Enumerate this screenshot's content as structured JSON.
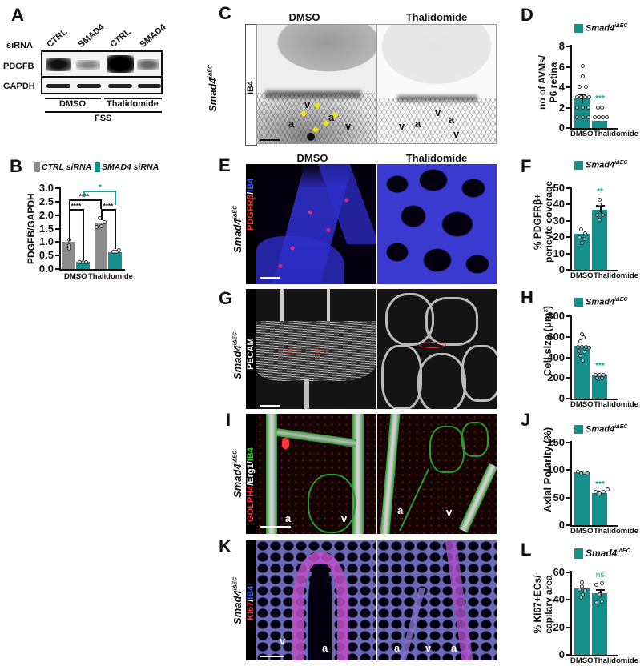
{
  "panels": {
    "A": {
      "label": "A",
      "row_header": "siRNA",
      "lanes": [
        "CTRL",
        "SMAD4",
        "CTRL",
        "SMAD4"
      ],
      "blots": [
        "PDGFB",
        "GAPDH"
      ],
      "treatments": [
        "DMSO",
        "Thalidomide"
      ],
      "condition": "FSS"
    },
    "B": {
      "label": "B",
      "legend": [
        {
          "name": "CTRL siRNA",
          "color": "#8c8c8c"
        },
        {
          "name": "SMAD4 siRNA",
          "color": "#138f8c"
        }
      ],
      "significance": [
        "****",
        "****",
        "****",
        "*"
      ]
    },
    "C": {
      "label": "C",
      "genotype": "Smad4",
      "genotype_sup": "iΔEC",
      "stain": "IB4",
      "columns": [
        "DMSO",
        "Thalidomide"
      ],
      "markers_left": [
        "v",
        "a",
        "a",
        "v"
      ],
      "markers_right": [
        "v",
        "a",
        "v",
        "a",
        "v"
      ]
    },
    "D": {
      "label": "D"
    },
    "E": {
      "label": "E",
      "genotype": "Smad4",
      "genotype_sup": "iΔEC",
      "stain_red": "PDGFRβ",
      "stain_sep": "/",
      "stain_blue": "IB4",
      "columns": [
        "DMSO",
        "Thalidomide"
      ]
    },
    "F": {
      "label": "F"
    },
    "G": {
      "label": "G",
      "genotype": "Smad4",
      "genotype_sup": "iΔEC",
      "stain": "PECAM"
    },
    "H": {
      "label": "H"
    },
    "I": {
      "label": "I",
      "genotype": "Smad4",
      "genotype_sup": "iΔEC",
      "stain_red": "GOLPH4",
      "stain_white": "/Erg1/",
      "stain_green": "IB4",
      "markers_left": [
        "a",
        "v"
      ],
      "markers_right": [
        "a",
        "v"
      ]
    },
    "J": {
      "label": "J"
    },
    "K": {
      "label": "K",
      "genotype": "Smad4",
      "genotype_sup": "iΔEC",
      "stain_red": "KI67",
      "stain_sep": "/",
      "stain_blue": "IB4",
      "markers_left": [
        "v",
        "a"
      ],
      "markers_right": [
        "a",
        "v",
        "a"
      ]
    },
    "L": {
      "label": "L"
    }
  },
  "legend_common": {
    "name": "Smad4",
    "sup": "iΔEC",
    "color": "#138f8c"
  },
  "chart_data": [
    {
      "panel": "B",
      "type": "bar",
      "categories": [
        "DMSO",
        "Thalidomide"
      ],
      "series": [
        {
          "name": "CTRL siRNA",
          "values": [
            1.0,
            1.7
          ],
          "color": "#8c8c8c"
        },
        {
          "name": "SMAD4 siRNA",
          "values": [
            0.28,
            0.6
          ],
          "color": "#138f8c"
        }
      ],
      "ylabel": "PDGFB/GAPDH",
      "ylim": [
        0,
        3.0
      ],
      "yticks": [
        "0.0",
        "0.5",
        "1.0",
        "1.5",
        "2.0",
        "2.5",
        "3.0"
      ],
      "annotations": [
        "**** CTRL vs SMAD4 (DMSO)",
        "**** CTRL vs SMAD4 (Thalidomide)",
        "**** CTRL DMSO vs CTRL Thalidomide",
        "* SMAD4 DMSO vs SMAD4 Thalidomide"
      ]
    },
    {
      "panel": "D",
      "type": "bar",
      "categories": [
        "DMSO",
        "Thalidomide"
      ],
      "values": [
        2.85,
        0.7
      ],
      "legend": "Smad4 iΔEC",
      "ylabel": "no of AVMs/ P6 retina",
      "ylim": [
        0,
        8
      ],
      "yticks": [
        "0",
        "2",
        "4",
        "6",
        "8"
      ],
      "annotations": [
        "***"
      ]
    },
    {
      "panel": "F",
      "type": "bar",
      "categories": [
        "DMSO",
        "Thalidomide"
      ],
      "values": [
        21.5,
        36
      ],
      "legend": "Smad4 iΔEC",
      "ylabel": "% PDGFRβ+ pericyte coverage",
      "ylim": [
        0,
        50
      ],
      "yticks": [
        "0",
        "10",
        "20",
        "30",
        "40",
        "50"
      ],
      "annotations": [
        "**"
      ]
    },
    {
      "panel": "H",
      "type": "bar",
      "categories": [
        "DMSO",
        "Thalidomide"
      ],
      "values": [
        505,
        225
      ],
      "legend": "Smad4 iΔEC",
      "ylabel": "Cell size (μm²)",
      "ylim": [
        0,
        800
      ],
      "yticks": [
        "0",
        "200",
        "400",
        "600",
        "800"
      ],
      "annotations": [
        "***"
      ]
    },
    {
      "panel": "J",
      "type": "bar",
      "categories": [
        "DMSO",
        "Thalidomide"
      ],
      "values": [
        94,
        57
      ],
      "legend": "Smad4 iΔEC",
      "ylabel": "Axial Polarity (%)",
      "ylim": [
        0,
        150
      ],
      "yticks": [
        "0",
        "50",
        "100",
        "150"
      ],
      "annotations": [
        "***"
      ]
    },
    {
      "panel": "L",
      "type": "bar",
      "categories": [
        "DMSO",
        "Thalidomide"
      ],
      "values": [
        47.5,
        44
      ],
      "legend": "Smad4 iΔEC",
      "ylabel": "% KI67+ECs/ capilary area",
      "ylim": [
        0,
        60
      ],
      "yticks": [
        "0",
        "20",
        "40",
        "60"
      ],
      "annotations": [
        "ns"
      ]
    }
  ]
}
